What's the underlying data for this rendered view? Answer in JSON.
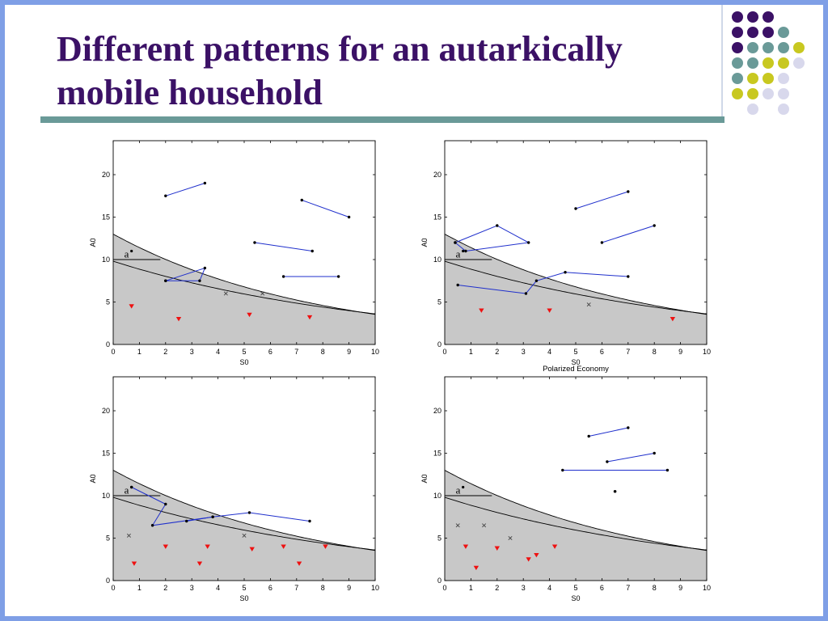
{
  "slide": {
    "title": "Different patterns for an autarkically mobile household"
  },
  "colors": {
    "frame": "#7f9fe6",
    "title": "#3b1166",
    "rule": "#6a9a98",
    "shade": "#c8c8c8",
    "path": "#1f2fcc",
    "marker_red": "#ee1111"
  },
  "decor_dots": [
    [
      "purple",
      "purple",
      "purple",
      "",
      "",
      ""
    ],
    [
      "purple",
      "purple",
      "purple",
      "teal",
      "",
      ""
    ],
    [
      "purple",
      "teal",
      "teal",
      "teal",
      "yellow",
      ""
    ],
    [
      "teal",
      "teal",
      "yellow",
      "yellow",
      "lavender",
      ""
    ],
    [
      "teal",
      "yellow",
      "yellow",
      "lavender",
      "",
      ""
    ],
    [
      "yellow",
      "yellow",
      "lavender",
      "lavender",
      "",
      ""
    ],
    [
      "",
      "lavender",
      "",
      "lavender",
      "",
      ""
    ]
  ],
  "dot_colors": {
    "purple": "#3b1166",
    "teal": "#6a9a98",
    "yellow": "#c8c820",
    "lavender": "#d8d8ec"
  },
  "chart_data": [
    {
      "type": "scatter",
      "title": "",
      "xlabel": "S0",
      "ylabel": "A0",
      "xlim": [
        0,
        10
      ],
      "ylim": [
        0,
        24
      ],
      "xticks": [
        0,
        1,
        2,
        3,
        4,
        5,
        6,
        7,
        8,
        9,
        10
      ],
      "yticks": [
        0,
        5,
        10,
        15,
        20
      ],
      "label_a": "a",
      "a_point": [
        0.7,
        11
      ],
      "segments": [
        [
          [
            2,
            17.5
          ],
          [
            3.5,
            19
          ]
        ],
        [
          [
            7.2,
            17
          ],
          [
            9,
            15
          ]
        ],
        [
          [
            5.4,
            12
          ],
          [
            7.6,
            11
          ]
        ],
        [
          [
            6.5,
            8
          ],
          [
            8.6,
            8
          ]
        ],
        [
          [
            2,
            7.5
          ],
          [
            3.3,
            7.5
          ],
          [
            3.5,
            9
          ],
          [
            2,
            7.5
          ]
        ]
      ],
      "crosses": [
        [
          4.3,
          6
        ],
        [
          5.7,
          6
        ]
      ],
      "triangles": [
        [
          0.7,
          4.5
        ],
        [
          2.5,
          3
        ],
        [
          5.2,
          3.5
        ],
        [
          7.5,
          3.2
        ]
      ]
    },
    {
      "type": "scatter",
      "title": "",
      "xlabel": "S0",
      "ylabel": "A0",
      "xlim": [
        0,
        10
      ],
      "ylim": [
        0,
        24
      ],
      "xticks": [
        0,
        1,
        2,
        3,
        4,
        5,
        6,
        7,
        8,
        9,
        10
      ],
      "yticks": [
        0,
        5,
        10,
        15,
        20
      ],
      "label_a": "a",
      "a_point": [
        0.7,
        11
      ],
      "segments": [
        [
          [
            0.4,
            12
          ],
          [
            2,
            14
          ],
          [
            3.2,
            12
          ],
          [
            0.8,
            11
          ],
          [
            0.4,
            12
          ]
        ],
        [
          [
            0.5,
            7
          ],
          [
            3.1,
            6
          ],
          [
            3.5,
            7.5
          ],
          [
            4.6,
            8.5
          ],
          [
            7,
            8
          ]
        ],
        [
          [
            5,
            16
          ],
          [
            7,
            18
          ]
        ],
        [
          [
            6,
            12
          ],
          [
            8,
            14
          ]
        ]
      ],
      "crosses": [
        [
          5.5,
          4.7
        ]
      ],
      "triangles": [
        [
          1.4,
          4
        ],
        [
          4,
          4
        ],
        [
          8.7,
          3
        ]
      ]
    },
    {
      "type": "scatter",
      "title": "",
      "xlabel": "S0",
      "ylabel": "A0",
      "xlim": [
        0,
        10
      ],
      "ylim": [
        0,
        24
      ],
      "xticks": [
        0,
        1,
        2,
        3,
        4,
        5,
        6,
        7,
        8,
        9,
        10
      ],
      "yticks": [
        0,
        5,
        10,
        15,
        20
      ],
      "label_a": "a",
      "a_point": [
        0.7,
        11
      ],
      "segments": [
        [
          [
            0.7,
            11
          ],
          [
            2,
            9
          ],
          [
            1.5,
            6.5
          ],
          [
            3.8,
            7.5
          ],
          [
            5.2,
            8
          ],
          [
            7.5,
            7
          ]
        ],
        [
          [
            2.8,
            7
          ],
          [
            3.8,
            7.5
          ]
        ]
      ],
      "crosses": [
        [
          0.6,
          5.3
        ],
        [
          5,
          5.3
        ]
      ],
      "triangles": [
        [
          0.8,
          2
        ],
        [
          2,
          4
        ],
        [
          3.3,
          2
        ],
        [
          3.6,
          4
        ],
        [
          5.3,
          3.7
        ],
        [
          6.5,
          4
        ],
        [
          7.1,
          2
        ],
        [
          8.1,
          4
        ]
      ]
    },
    {
      "type": "scatter",
      "title": "Polarized Economy",
      "xlabel": "S0",
      "ylabel": "A0",
      "xlim": [
        0,
        10
      ],
      "ylim": [
        0,
        24
      ],
      "xticks": [
        0,
        1,
        2,
        3,
        4,
        5,
        6,
        7,
        8,
        9,
        10
      ],
      "yticks": [
        0,
        5,
        10,
        15,
        20
      ],
      "label_a": "a",
      "a_point": [
        0.7,
        11
      ],
      "segments": [
        [
          [
            5.5,
            17
          ],
          [
            7,
            18
          ]
        ],
        [
          [
            6.2,
            14
          ],
          [
            8,
            15
          ]
        ],
        [
          [
            4.5,
            13
          ],
          [
            8.5,
            13
          ]
        ]
      ],
      "points": [
        [
          6.5,
          10.5
        ]
      ],
      "crosses": [
        [
          0.5,
          6.5
        ],
        [
          1.5,
          6.5
        ],
        [
          2.5,
          5
        ]
      ],
      "triangles": [
        [
          0.8,
          4
        ],
        [
          1.2,
          1.5
        ],
        [
          2,
          3.8
        ],
        [
          3.2,
          2.5
        ],
        [
          3.5,
          3
        ],
        [
          4.2,
          4
        ]
      ]
    }
  ]
}
